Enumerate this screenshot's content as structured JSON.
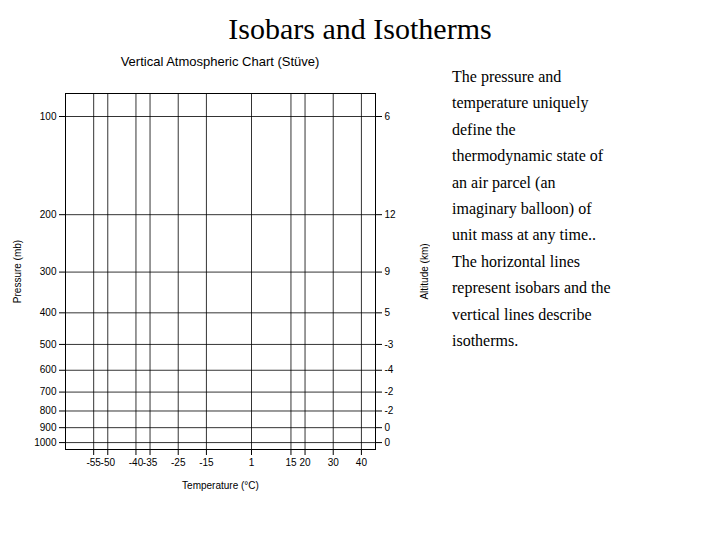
{
  "chart_data": {
    "type": "rule",
    "title": "Isobars and Isotherms",
    "subtitle": "Vertical Atmospheric Chart (Stüve)",
    "xlabel": "Temperature (°C)",
    "ylabel": "Pressure (mb)",
    "y2label": "Altitude (km)",
    "isobars": [
      100,
      200,
      300,
      400,
      500,
      600,
      700,
      800,
      900,
      1000
    ],
    "isotherms": [
      -55,
      -50,
      -40,
      -35,
      -25,
      -15,
      1,
      15,
      20,
      30,
      40
    ],
    "altitudes": [
      6,
      12,
      9,
      5,
      -3,
      -4,
      -2,
      -2,
      0,
      0
    ],
    "log": "y",
    "xlim": [
      -65,
      45
    ],
    "xticks": [
      -55,
      -50,
      -40,
      -35,
      -25,
      -15,
      1,
      15,
      20,
      30,
      40
    ],
    "ylim": [
      1050,
      85
    ],
    "yticks": [
      100,
      200,
      300,
      400,
      500,
      600,
      700,
      800,
      900,
      1000
    ],
    "annotations": [
      "The pressure and",
      "temperature uniquely",
      "define the",
      "thermodynamic state of",
      "an air parcel (an",
      "imaginary balloon) of",
      "unit mass at any time..",
      "The horizontal lines",
      "represent isobars and the",
      "vertical lines describe",
      "isotherms."
    ]
  }
}
